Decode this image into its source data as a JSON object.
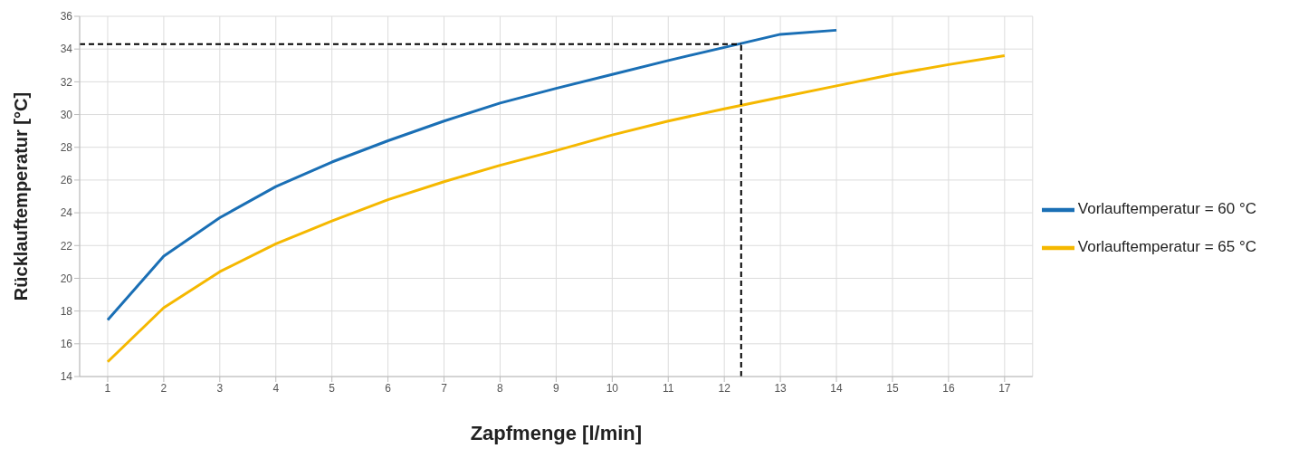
{
  "chart_data": {
    "type": "line",
    "xlabel": "Zapfmenge [l/min]",
    "ylabel": "Rücklauftemperatur [°C]",
    "x": [
      1,
      2,
      3,
      4,
      5,
      6,
      7,
      8,
      9,
      10,
      11,
      12,
      13,
      14,
      15,
      16,
      17
    ],
    "series": [
      {
        "name": "Vorlauftemperatur = 60 °C",
        "color": "#1a6fb5",
        "values": [
          17.45,
          21.35,
          23.7,
          25.6,
          27.1,
          28.4,
          29.6,
          30.7,
          31.6,
          32.45,
          33.3,
          34.1,
          34.9,
          35.15,
          null,
          null,
          null
        ]
      },
      {
        "name": "Vorlauftemperatur = 65 °C",
        "color": "#f5b800",
        "values": [
          14.9,
          18.2,
          20.4,
          22.1,
          23.5,
          24.8,
          25.9,
          26.9,
          27.8,
          28.75,
          29.6,
          30.35,
          31.05,
          31.75,
          32.45,
          33.05,
          33.6
        ]
      }
    ],
    "xlim": [
      0.5,
      17.5
    ],
    "xticks": [
      1,
      2,
      3,
      4,
      5,
      6,
      7,
      8,
      9,
      10,
      11,
      12,
      13,
      14,
      15,
      16,
      17
    ],
    "ylim": [
      14,
      36
    ],
    "yticks": [
      14,
      16,
      18,
      20,
      22,
      24,
      26,
      28,
      30,
      32,
      34,
      36
    ],
    "ref_lines": [
      {
        "axis": "x",
        "value": 12.3,
        "color": "#000000",
        "line_style": "dashed"
      },
      {
        "axis": "y",
        "value": 34.3,
        "color": "#000000",
        "line_style": "dashed"
      }
    ],
    "grid": true,
    "legend": "right",
    "marker": "none",
    "line_style": "solid"
  }
}
